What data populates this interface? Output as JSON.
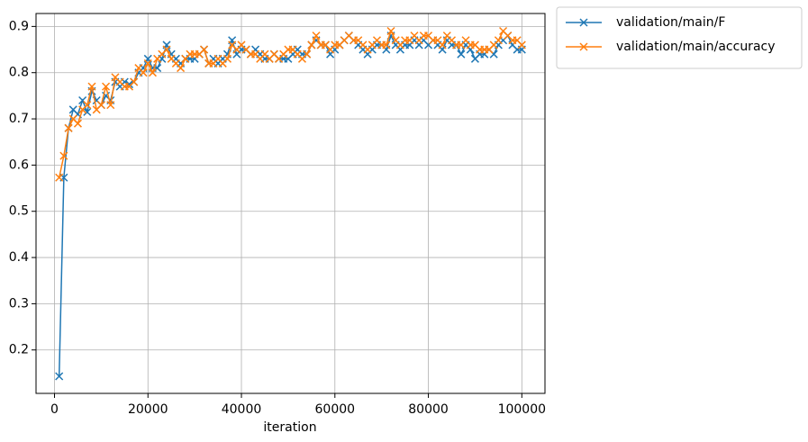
{
  "chart_data": {
    "type": "line",
    "xlabel": "iteration",
    "x": [
      1000,
      2000,
      3000,
      4000,
      5000,
      6000,
      7000,
      8000,
      9000,
      10000,
      11000,
      12000,
      13000,
      14000,
      15000,
      16000,
      17000,
      18000,
      19000,
      20000,
      21000,
      22000,
      23000,
      24000,
      25000,
      26000,
      27000,
      28000,
      29000,
      30000,
      31000,
      32000,
      33000,
      34000,
      35000,
      36000,
      37000,
      38000,
      39000,
      40000,
      41000,
      42000,
      43000,
      44000,
      45000,
      46000,
      47000,
      48000,
      49000,
      50000,
      51000,
      52000,
      53000,
      54000,
      55000,
      56000,
      57000,
      58000,
      59000,
      60000,
      61000,
      62000,
      63000,
      64000,
      65000,
      66000,
      67000,
      68000,
      69000,
      70000,
      71000,
      72000,
      73000,
      74000,
      75000,
      76000,
      77000,
      78000,
      79000,
      80000,
      81000,
      82000,
      83000,
      84000,
      85000,
      86000,
      87000,
      88000,
      89000,
      90000,
      91000,
      92000,
      93000,
      94000,
      95000,
      96000,
      97000,
      98000,
      99000,
      100000
    ],
    "series": [
      {
        "name": "validation/main/F",
        "color": "#1f77b4",
        "values": [
          0.143,
          0.573,
          0.68,
          0.72,
          0.71,
          0.74,
          0.715,
          0.76,
          0.74,
          0.73,
          0.75,
          0.74,
          0.78,
          0.77,
          0.78,
          0.775,
          0.78,
          0.8,
          0.81,
          0.83,
          0.81,
          0.81,
          0.83,
          0.86,
          0.84,
          0.83,
          0.82,
          0.83,
          0.83,
          0.83,
          0.84,
          0.85,
          0.82,
          0.83,
          0.82,
          0.83,
          0.84,
          0.87,
          0.84,
          0.85,
          0.85,
          0.84,
          0.85,
          0.84,
          0.83,
          0.83,
          0.84,
          0.83,
          0.83,
          0.83,
          0.84,
          0.85,
          0.84,
          0.84,
          0.86,
          0.87,
          0.86,
          0.86,
          0.84,
          0.85,
          0.86,
          0.87,
          0.88,
          0.87,
          0.86,
          0.85,
          0.84,
          0.85,
          0.86,
          0.86,
          0.85,
          0.88,
          0.86,
          0.85,
          0.86,
          0.86,
          0.87,
          0.86,
          0.87,
          0.86,
          0.87,
          0.86,
          0.85,
          0.87,
          0.86,
          0.86,
          0.84,
          0.86,
          0.85,
          0.83,
          0.84,
          0.84,
          0.85,
          0.84,
          0.86,
          0.87,
          0.88,
          0.86,
          0.85,
          0.85
        ]
      },
      {
        "name": "validation/main/accuracy",
        "color": "#ff7f0e",
        "values": [
          0.573,
          0.62,
          0.68,
          0.7,
          0.69,
          0.72,
          0.73,
          0.77,
          0.72,
          0.73,
          0.77,
          0.73,
          0.79,
          0.78,
          0.77,
          0.77,
          0.78,
          0.81,
          0.8,
          0.82,
          0.8,
          0.83,
          0.84,
          0.85,
          0.83,
          0.82,
          0.81,
          0.83,
          0.84,
          0.84,
          0.84,
          0.85,
          0.82,
          0.82,
          0.83,
          0.82,
          0.83,
          0.86,
          0.85,
          0.86,
          0.85,
          0.84,
          0.84,
          0.83,
          0.84,
          0.83,
          0.84,
          0.83,
          0.84,
          0.85,
          0.85,
          0.84,
          0.83,
          0.84,
          0.86,
          0.88,
          0.86,
          0.86,
          0.85,
          0.86,
          0.86,
          0.87,
          0.88,
          0.87,
          0.87,
          0.86,
          0.85,
          0.86,
          0.87,
          0.86,
          0.86,
          0.89,
          0.87,
          0.86,
          0.87,
          0.87,
          0.88,
          0.87,
          0.88,
          0.88,
          0.87,
          0.87,
          0.86,
          0.88,
          0.87,
          0.86,
          0.86,
          0.87,
          0.86,
          0.86,
          0.85,
          0.85,
          0.85,
          0.86,
          0.87,
          0.89,
          0.88,
          0.87,
          0.87,
          0.86
        ]
      }
    ],
    "xlim": [
      -3950,
      104950
    ],
    "xticks": [
      0,
      20000,
      40000,
      60000,
      80000,
      100000
    ],
    "ylim": [
      0.106,
      0.928
    ],
    "yticks": [
      0.2,
      0.3,
      0.4,
      0.5,
      0.6,
      0.7,
      0.8,
      0.9
    ],
    "grid": true,
    "legend": "outside upper right"
  }
}
